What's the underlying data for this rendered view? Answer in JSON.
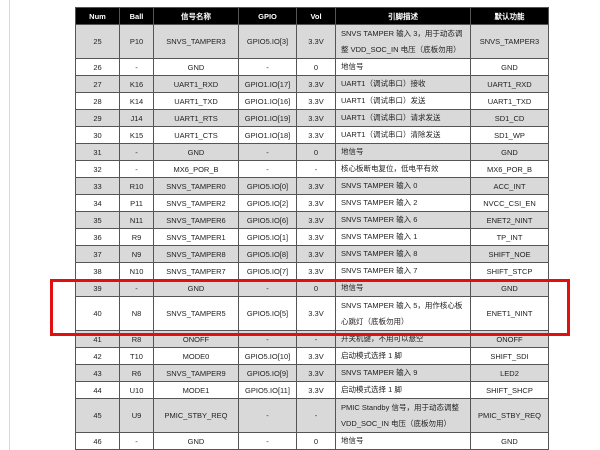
{
  "headers": [
    "Num",
    "Ball",
    "信号名称",
    "GPIO",
    "Vol",
    "引脚描述",
    "默认功能"
  ],
  "rows": [
    [
      "25",
      "P10",
      "SNVS_TAMPER3",
      "GPIO5.IO[3]",
      "3.3V",
      "SNVS TAMPER 输入 3，用于动态调整 VDD_SOC_IN 电压（底板勿用）",
      "SNVS_TAMPER3"
    ],
    [
      "26",
      "-",
      "GND",
      "-",
      "0",
      "地信号",
      "GND"
    ],
    [
      "27",
      "K16",
      "UART1_RXD",
      "GPIO1.IO[17]",
      "3.3V",
      "UART1（调试串口）接收",
      "UART1_RXD"
    ],
    [
      "28",
      "K14",
      "UART1_TXD",
      "GPIO1.IO[16]",
      "3.3V",
      "UART1（调试串口）发送",
      "UART1_TXD"
    ],
    [
      "29",
      "J14",
      "UART1_RTS",
      "GPIO1.IO[19]",
      "3.3V",
      "UART1（调试串口）请求发送",
      "SD1_CD"
    ],
    [
      "30",
      "K15",
      "UART1_CTS",
      "GPIO1.IO[18]",
      "3.3V",
      "UART1（调试串口）清除发送",
      "SD1_WP"
    ],
    [
      "31",
      "-",
      "GND",
      "-",
      "0",
      "地信号",
      "GND"
    ],
    [
      "32",
      "-",
      "MX6_POR_B",
      "-",
      "-",
      "核心板断电复位，低电平有效",
      "MX6_POR_B"
    ],
    [
      "33",
      "R10",
      "SNVS_TAMPER0",
      "GPIO5.IO[0]",
      "3.3V",
      "SNVS TAMPER 输入 0",
      "ACC_INT"
    ],
    [
      "34",
      "P11",
      "SNVS_TAMPER2",
      "GPIO5.IO[2]",
      "3.3V",
      "SNVS TAMPER 输入 2",
      "NVCC_CSI_EN"
    ],
    [
      "35",
      "N11",
      "SNVS_TAMPER6",
      "GPIO5.IO[6]",
      "3.3V",
      "SNVS TAMPER 输入 6",
      "ENET2_NINT"
    ],
    [
      "36",
      "R9",
      "SNVS_TAMPER1",
      "GPIO5.IO[1]",
      "3.3V",
      "SNVS TAMPER 输入 1",
      "TP_INT"
    ],
    [
      "37",
      "N9",
      "SNVS_TAMPER8",
      "GPIO5.IO[8]",
      "3.3V",
      "SNVS TAMPER 输入 8",
      "SHIFT_NOE"
    ],
    [
      "38",
      "N10",
      "SNVS_TAMPER7",
      "GPIO5.IO[7]",
      "3.3V",
      "SNVS TAMPER 输入 7",
      "SHIFT_STCP"
    ],
    [
      "39",
      "-",
      "GND",
      "-",
      "0",
      "地信号",
      "GND"
    ],
    [
      "40",
      "N8",
      "SNVS_TAMPER5",
      "GPIO5.IO[5]",
      "3.3V",
      "SNVS TAMPER 输入 5，用作核心板心跳灯（底板勿用）",
      "ENET1_NINT"
    ],
    [
      "41",
      "R8",
      "ONOFF",
      "-",
      "-",
      "开关机键，不用可以悬空",
      "ONOFF"
    ],
    [
      "42",
      "T10",
      "MODE0",
      "GPIO5.IO[10]",
      "3.3V",
      "启动模式选择 1 脚",
      "SHIFT_SDI"
    ],
    [
      "43",
      "R6",
      "SNVS_TAMPER9",
      "GPIO5.IO[9]",
      "3.3V",
      "SNVS TAMPER 输入 9",
      "LED2"
    ],
    [
      "44",
      "U10",
      "MODE1",
      "GPIO5.IO[11]",
      "3.3V",
      "启动模式选择 1 脚",
      "SHIFT_SHCP"
    ],
    [
      "45",
      "U9",
      "PMIC_STBY_REQ",
      "-",
      "-",
      "PMIC Standby 信号，用于动态调整 VDD_SOC_IN 电压（底板勿用）",
      "PMIC_STBY_REQ"
    ],
    [
      "46",
      "-",
      "GND",
      "-",
      "0",
      "地信号",
      "GND"
    ]
  ],
  "tall_rows": [
    "25",
    "40",
    "45"
  ],
  "highlight_color": "#e01010"
}
